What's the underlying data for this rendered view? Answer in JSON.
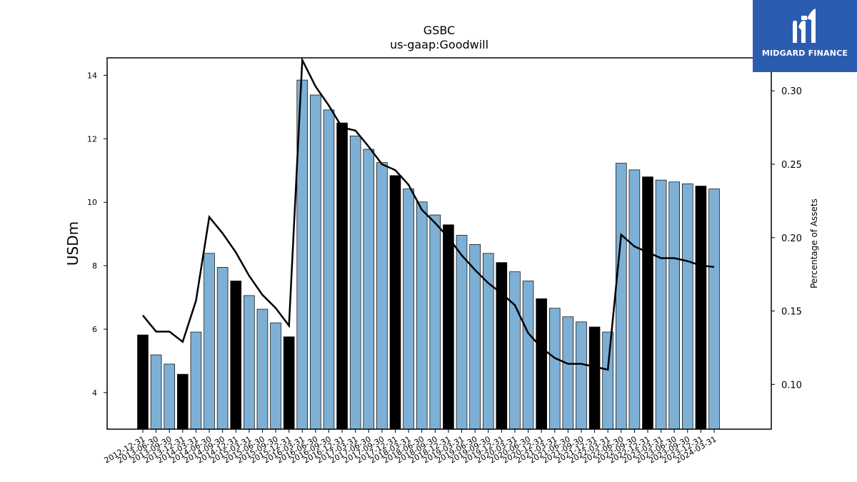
{
  "logo": {
    "text": "MIDGARD FINANCE"
  },
  "chart_data": {
    "type": "bar",
    "title": "GSBC",
    "subtitle": "us-gaap:Goodwill",
    "ylabel": "USDm",
    "y2label": "Percentage of Assets",
    "ylim": [
      2.85,
      14.55
    ],
    "y2lim": [
      0.0695,
      0.3225
    ],
    "yticks": [
      4,
      6,
      8,
      10,
      12,
      14
    ],
    "y2ticks": [
      0.1,
      0.15,
      0.2,
      0.25,
      0.3
    ],
    "bar_colors": {
      "quarter": "#7eb0d5",
      "year_end": "#000000"
    },
    "line_color": "#000000",
    "categories": [
      "2012-12-31",
      "2013-06-30",
      "2013-09-30",
      "2013-12-31",
      "2014-03-31",
      "2014-06-30",
      "2014-09-30",
      "2014-12-31",
      "2015-03-31",
      "2015-06-30",
      "2015-09-30",
      "2015-12-31",
      "2016-03-31",
      "2016-06-30",
      "2016-09-30",
      "2016-12-31",
      "2017-03-31",
      "2017-06-30",
      "2017-09-30",
      "2017-12-31",
      "2018-03-31",
      "2018-06-30",
      "2018-09-30",
      "2018-12-31",
      "2019-03-31",
      "2019-06-30",
      "2019-09-30",
      "2019-12-31",
      "2020-03-31",
      "2020-06-30",
      "2020-12-31",
      "2021-03-31",
      "2021-06-30",
      "2021-09-30",
      "2021-12-31",
      "2022-03-31",
      "2022-06-30",
      "2022-09-30",
      "2022-12-31",
      "2023-03-31",
      "2023-06-30",
      "2023-09-30",
      "2023-12-31",
      "2024-03-31"
    ],
    "series": [
      {
        "type": "bar",
        "values": [
          5.82,
          5.19,
          4.9,
          4.58,
          5.91,
          8.39,
          7.95,
          7.52,
          7.06,
          6.63,
          6.2,
          5.76,
          13.85,
          13.38,
          12.91,
          12.5,
          12.09,
          11.67,
          11.25,
          10.84,
          10.42,
          10.01,
          9.6,
          9.29,
          8.96,
          8.67,
          8.39,
          8.1,
          7.81,
          7.52,
          6.96,
          6.66,
          6.39,
          6.23,
          6.07,
          5.91,
          11.23,
          11.02,
          10.8,
          10.7,
          10.64,
          10.58,
          10.51,
          10.42
        ]
      },
      {
        "type": "line",
        "axis": "right",
        "values": [
          0.147,
          0.136,
          0.136,
          0.129,
          0.157,
          0.214,
          0.203,
          0.19,
          0.174,
          0.161,
          0.152,
          0.14,
          0.321,
          0.303,
          0.29,
          0.275,
          0.273,
          0.262,
          0.25,
          0.246,
          0.236,
          0.219,
          0.21,
          0.2,
          0.188,
          0.178,
          0.169,
          0.162,
          0.154,
          0.135,
          0.125,
          0.118,
          0.114,
          0.114,
          0.112,
          0.11,
          0.202,
          0.194,
          0.19,
          0.186,
          0.186,
          0.184,
          0.181,
          0.18
        ]
      }
    ]
  }
}
